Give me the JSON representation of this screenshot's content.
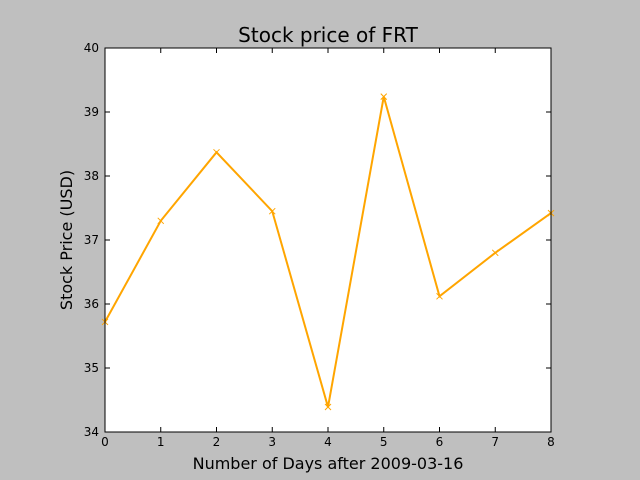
{
  "chart_data": {
    "type": "line",
    "title": "Stock price of FRT",
    "xlabel": "Number of Days after 2009-03-16",
    "ylabel": "Stock Price (USD)",
    "xlim": [
      0,
      8
    ],
    "ylim": [
      34,
      40
    ],
    "xticks": [
      "0",
      "1",
      "2",
      "3",
      "4",
      "5",
      "6",
      "7",
      "8"
    ],
    "yticks": [
      "34",
      "35",
      "36",
      "37",
      "38",
      "39",
      "40"
    ],
    "grid": false,
    "series": [
      {
        "color": "#ffa500",
        "marker": "x",
        "x": [
          0,
          1,
          2,
          3,
          4,
          5,
          6,
          7,
          8
        ],
        "values": [
          35.72,
          37.3,
          38.37,
          37.45,
          34.39,
          39.24,
          36.12,
          36.8,
          37.42
        ]
      }
    ]
  },
  "colors": {
    "background": "#bfbfbf",
    "plot_area": "#ffffff",
    "line": "#ffa500"
  }
}
